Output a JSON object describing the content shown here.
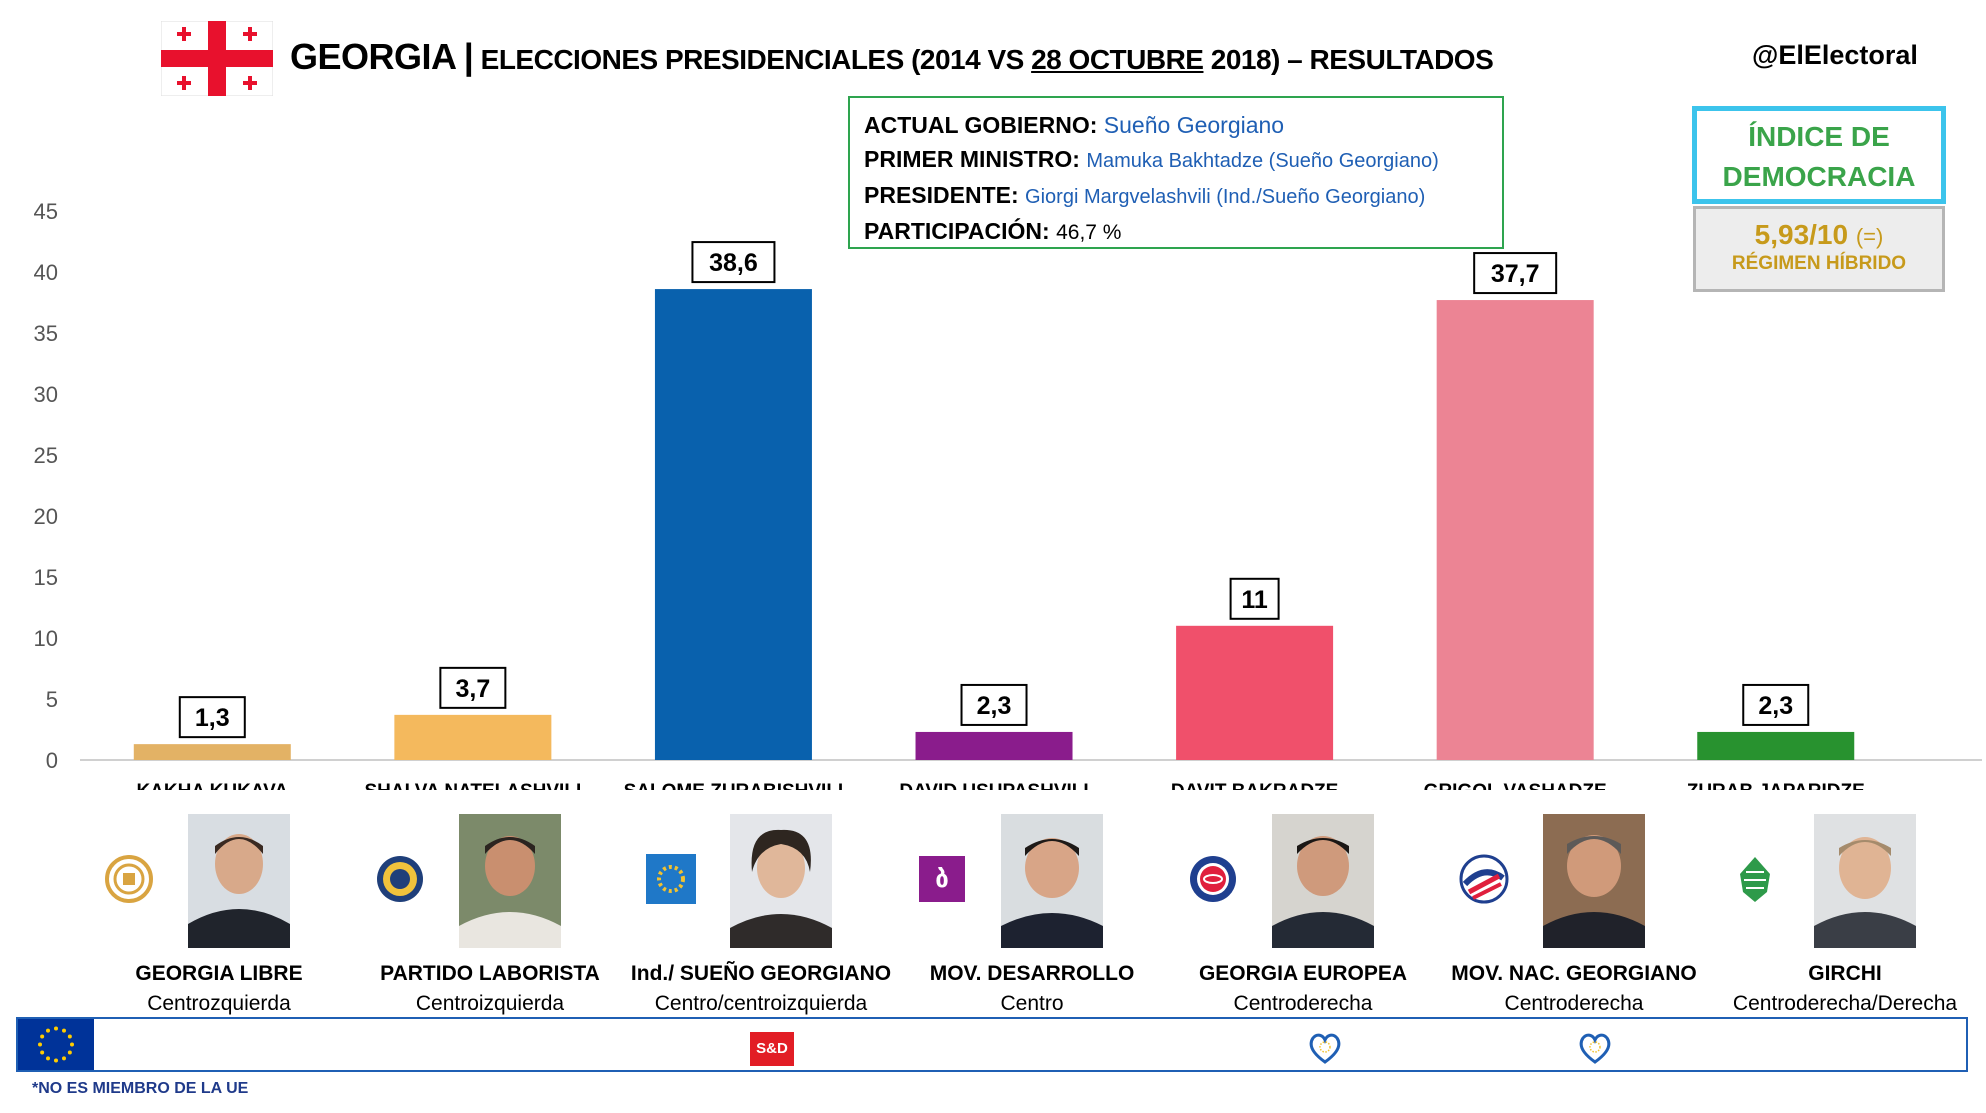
{
  "header": {
    "title_country": "GEORGIA",
    "title_sep": "|",
    "title_pre": "ELECCIONES PRESIDENCIALES",
    "title_paren_open": "(2014 VS",
    "title_date": "28 OCTUBRE",
    "title_paren_close": "2018)",
    "title_post": "– RESULTADOS",
    "handle": "@ElElectoral"
  },
  "government": {
    "gov_label": "ACTUAL GOBIERNO:",
    "gov_value": "Sueño Georgiano",
    "pm_label": "PRIMER MINISTRO:",
    "pm_value": "Mamuka Bakhtadze (Sueño Georgiano)",
    "president_label": "PRESIDENTE:",
    "president_value": "Giorgi Margvelashvili (Ind./Sueño Georgiano)",
    "turnout_label": "PARTICIPACIÓN:",
    "turnout_value": "46,7 %"
  },
  "democracy_index": {
    "title_line1": "ÍNDICE DE",
    "title_line2": "DEMOCRACIA",
    "score": "5,93/10",
    "change": "(=)",
    "regime": "RÉGIMEN HÍBRIDO"
  },
  "chart_data": {
    "type": "bar",
    "ylim": [
      0,
      45
    ],
    "yticks": [
      0,
      5,
      10,
      15,
      20,
      25,
      30,
      35,
      40,
      45
    ],
    "categories": [
      "KAKHA KUKAVA",
      "SHALVA NATELASHVILI",
      "SALOME ZURABISHVILI",
      "DAVID USUPASHVILI",
      "DAVIT BAKRADZE",
      "GRIGOL VASHADZE",
      "ZURAB JAPARIDZE"
    ],
    "values": [
      1.3,
      3.7,
      38.6,
      2.3,
      11,
      37.7,
      2.3
    ],
    "value_labels": [
      "1,3",
      "3,7",
      "38,6",
      "2,3",
      "11",
      "37,7",
      "2,3"
    ],
    "colors": [
      "#e3b265",
      "#f4b95d",
      "#0961ad",
      "#8a1c8c",
      "#f0506b",
      "#ec8494",
      "#28922f"
    ],
    "grid": false
  },
  "candidates": [
    {
      "party": "GEORGIA LIBRE",
      "ideology": "Centrozquierda"
    },
    {
      "party": "PARTIDO LABORISTA",
      "ideology": "Centroizquierda"
    },
    {
      "party": "Ind./ SUEÑO GEORGIANO",
      "ideology": "Centro/centroizquierda"
    },
    {
      "party": "MOV. DESARROLLO",
      "ideology": "Centro"
    },
    {
      "party": "GEORGIA EUROPEA",
      "ideology": "Centroderecha"
    },
    {
      "party": "MOV. NAC. GEORGIANO",
      "ideology": "Centroderecha"
    },
    {
      "party": "GIRCHI",
      "ideology": "Centroderecha/Derecha"
    }
  ],
  "eu": {
    "sd_label": "S&D",
    "footnote": "*NO ES MIEMBRO DE LA UE"
  },
  "colors": {
    "flag_red": "#e8112d",
    "box_green": "#2ea44f",
    "index_cyan": "#3cc4ec",
    "index_green": "#3aa44a",
    "index_gold": "#c79a1b",
    "link_blue": "#1f5fb4"
  }
}
